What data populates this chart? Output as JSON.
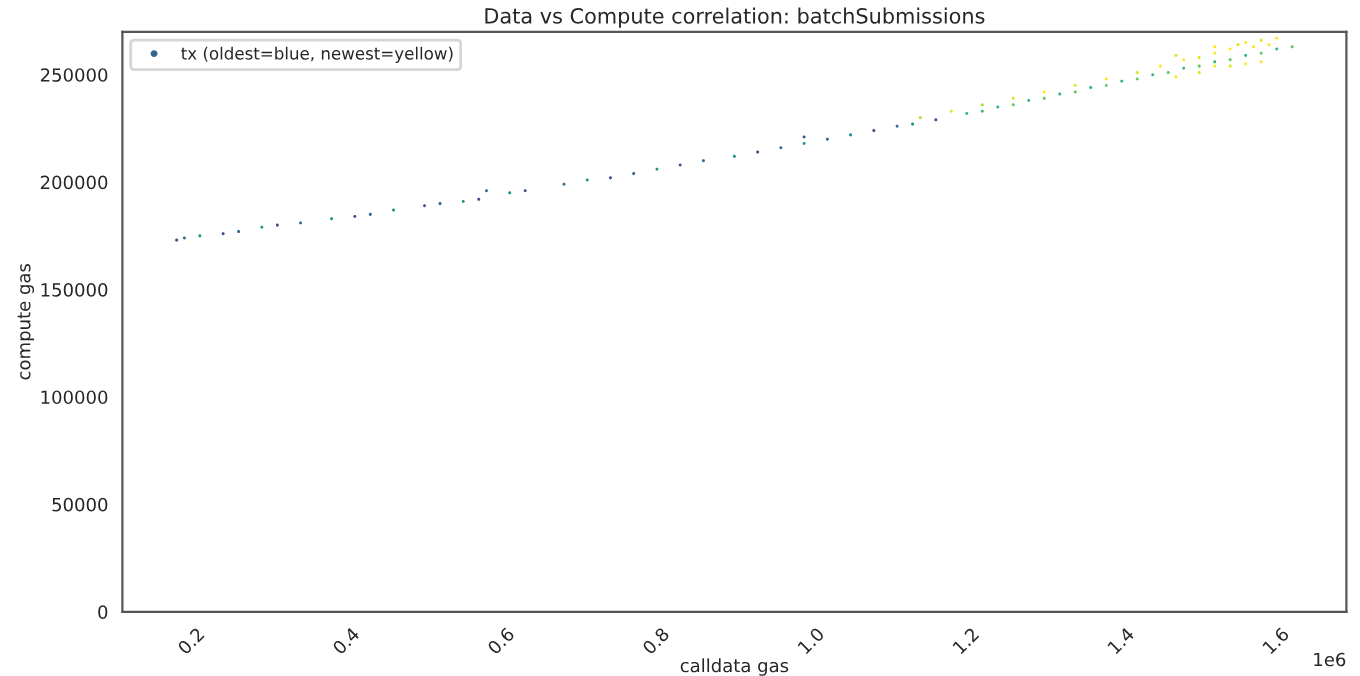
{
  "chart_data": {
    "type": "scatter",
    "title": "Data vs Compute correlation: batchSubmissions",
    "xlabel": "calldata gas",
    "ylabel": "compute gas",
    "annotations": [
      "1e6"
    ],
    "xlim": [
      0.11,
      1.69
    ],
    "ylim": [
      0,
      270000
    ],
    "xticks": [
      0.2,
      0.4,
      0.6,
      0.8,
      {
        "value": 1,
        "label": "1.0"
      },
      1.2,
      1.4,
      1.6
    ],
    "yticks": [
      0,
      50000,
      100000,
      150000,
      200000,
      250000
    ],
    "grid": false,
    "legend": "top left",
    "marker": "circle",
    "series": [
      {
        "name": "tx (oldest=blue, newest=yellow)",
        "color": "#31688e",
        "x": [
          0.18,
          0.19,
          0.21,
          0.24,
          0.26,
          0.29,
          0.31,
          0.34,
          0.38,
          0.41,
          0.43,
          0.46,
          0.5,
          0.52,
          0.55,
          0.57,
          0.58,
          0.61,
          0.63,
          0.68,
          0.71,
          0.74,
          0.77,
          0.8,
          0.83,
          0.86,
          0.9,
          0.93,
          0.96,
          0.99,
          0.99,
          1.02,
          1.05,
          1.08,
          1.11,
          1.13,
          1.16,
          1.2,
          1.22,
          1.24,
          1.26,
          1.28,
          1.3,
          1.32,
          1.34,
          1.36,
          1.38,
          1.4,
          1.42,
          1.44,
          1.46,
          1.48,
          1.5,
          1.52,
          1.54,
          1.56,
          1.58,
          1.6,
          1.62,
          1.14,
          1.18,
          1.22,
          1.26,
          1.3,
          1.34,
          1.38,
          1.42,
          1.45,
          1.48,
          1.5,
          1.52,
          1.54,
          1.55,
          1.56,
          1.57,
          1.58,
          1.59,
          1.6,
          1.47,
          1.52,
          1.52,
          1.54,
          1.56,
          1.58,
          1.5,
          1.47
        ],
        "values": [
          173000,
          174000,
          175000,
          176000,
          177000,
          179000,
          180000,
          181000,
          183000,
          184000,
          185000,
          187000,
          189000,
          190000,
          191000,
          192000,
          196000,
          195000,
          196000,
          199000,
          201000,
          202000,
          204000,
          206000,
          208000,
          210000,
          212000,
          214000,
          216000,
          218000,
          221000,
          220000,
          222000,
          224000,
          226000,
          227000,
          229000,
          232000,
          233000,
          235000,
          236000,
          238000,
          239000,
          241000,
          242000,
          244000,
          245000,
          247000,
          248000,
          250000,
          251000,
          253000,
          254000,
          256000,
          257000,
          259000,
          260000,
          262000,
          263000,
          230000,
          233000,
          236000,
          239000,
          242000,
          245000,
          248000,
          251000,
          254000,
          257000,
          258000,
          260000,
          262000,
          264000,
          265000,
          263000,
          266000,
          264000,
          267000,
          259000,
          263000,
          254000,
          254000,
          255000,
          256000,
          251000,
          249000
        ],
        "colors": [
          "#3b528b",
          "#31688e",
          "#21918c",
          "#3b528b",
          "#31688e",
          "#21918c",
          "#3b528b",
          "#31688e",
          "#21918c",
          "#3b528b",
          "#31688e",
          "#21918c",
          "#3b528b",
          "#31688e",
          "#21918c",
          "#3b528b",
          "#31688e",
          "#21918c",
          "#3b528b",
          "#31688e",
          "#21918c",
          "#3b528b",
          "#31688e",
          "#21918c",
          "#3b528b",
          "#31688e",
          "#21918c",
          "#3b528b",
          "#31688e",
          "#21918c",
          "#3b528b",
          "#31688e",
          "#21918c",
          "#3b528b",
          "#31688e",
          "#21918c",
          "#3b528b",
          "#35b779",
          "#35b779",
          "#35b779",
          "#5ec962",
          "#35b779",
          "#5ec962",
          "#35b779",
          "#5ec962",
          "#35b779",
          "#5ec962",
          "#35b779",
          "#5ec962",
          "#35b779",
          "#5ec962",
          "#35b779",
          "#5ec962",
          "#35b779",
          "#5ec962",
          "#35b779",
          "#5ec962",
          "#35b779",
          "#5ec962",
          "#b5de2b",
          "#dfe318",
          "#b5de2b",
          "#dfe318",
          "#fde725",
          "#dfe318",
          "#fde725",
          "#dfe318",
          "#fde725",
          "#fde725",
          "#dfe318",
          "#fde725",
          "#fde725",
          "#dfe318",
          "#fde725",
          "#fde725",
          "#dfe318",
          "#fde725",
          "#fde725",
          "#dfe318",
          "#fde725",
          "#fde725",
          "#dfe318",
          "#fde725",
          "#fde725",
          "#dfe318",
          "#fde725"
        ]
      }
    ]
  }
}
